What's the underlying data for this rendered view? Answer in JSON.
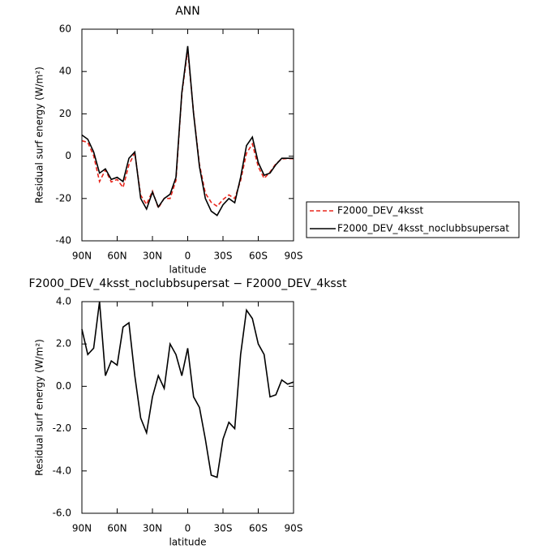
{
  "chart_data": [
    {
      "type": "line",
      "title": "ANN",
      "x_label": "latitude",
      "y_label": "Residual surf energy (W/m²)",
      "x": [
        90,
        85,
        80,
        75,
        70,
        65,
        60,
        55,
        50,
        45,
        40,
        35,
        30,
        25,
        20,
        15,
        10,
        5,
        0,
        -5,
        -10,
        -15,
        -20,
        -25,
        -30,
        -35,
        -40,
        -45,
        -50,
        -55,
        -60,
        -65,
        -70,
        -75,
        -80,
        -85,
        -90
      ],
      "xlim": [
        90,
        -90
      ],
      "xticks": [
        {
          "value": 90,
          "label": "90N"
        },
        {
          "value": 60,
          "label": "60N"
        },
        {
          "value": 30,
          "label": "30N"
        },
        0,
        {
          "value": -30,
          "label": "30S"
        },
        {
          "value": -60,
          "label": "60S"
        },
        {
          "value": -90,
          "label": "90S"
        }
      ],
      "ylim": [
        -40,
        60
      ],
      "yticks": [
        -40,
        -20,
        0,
        20,
        40,
        60
      ],
      "legend": "right",
      "series": [
        {
          "name": "F2000_DEV_4ksst",
          "color": "#e8261c",
          "dash": true,
          "values": [
            7.3,
            6.5,
            0.2,
            -12,
            -6.5,
            -12.2,
            -11,
            -14.8,
            -4,
            1.5,
            -18.5,
            -22.8,
            -16.5,
            -24.5,
            -19.9,
            -20,
            -11.5,
            29.5,
            50.2,
            20.5,
            -4,
            -17.5,
            -21.8,
            -23.7,
            -20.5,
            -18.3,
            -20,
            -11.5,
            1.4,
            5.8,
            -5,
            -10.5,
            -7.5,
            -3.6,
            -1.3,
            -1.1,
            -1.2
          ]
        },
        {
          "name": "F2000_DEV_4ksst_noclubbsupersat",
          "color": "#000000",
          "dash": false,
          "values": [
            10,
            8,
            2,
            -8,
            -6,
            -11,
            -10,
            -12,
            -1,
            2,
            -20,
            -25,
            -17,
            -24,
            -20,
            -18,
            -10,
            30,
            52,
            20,
            -5,
            -20,
            -26,
            -28,
            -23,
            -20,
            -22,
            -10,
            5,
            9,
            -3,
            -9,
            -8,
            -4,
            -1,
            -1,
            -1
          ]
        }
      ]
    },
    {
      "type": "line",
      "title": "F2000_DEV_4ksst_noclubbsupersat − F2000_DEV_4ksst",
      "x_label": "latitude",
      "y_label": "Residual surf energy (W/m²)",
      "x": [
        90,
        85,
        80,
        75,
        70,
        65,
        60,
        55,
        50,
        45,
        40,
        35,
        30,
        25,
        20,
        15,
        10,
        5,
        0,
        -5,
        -10,
        -15,
        -20,
        -25,
        -30,
        -35,
        -40,
        -45,
        -50,
        -55,
        -60,
        -65,
        -70,
        -75,
        -80,
        -85,
        -90
      ],
      "xlim": [
        90,
        -90
      ],
      "xticks": [
        {
          "value": 90,
          "label": "90N"
        },
        {
          "value": 60,
          "label": "60N"
        },
        {
          "value": 30,
          "label": "30N"
        },
        0,
        {
          "value": -30,
          "label": "30S"
        },
        {
          "value": -60,
          "label": "60S"
        },
        {
          "value": -90,
          "label": "90S"
        }
      ],
      "ylim": [
        -6,
        4
      ],
      "yticks": [
        {
          "value": -6,
          "label": "-6.0"
        },
        {
          "value": -4,
          "label": "-4.0"
        },
        {
          "value": -2,
          "label": "-2.0"
        },
        {
          "value": 0,
          "label": "0.0"
        },
        {
          "value": 2,
          "label": "2.0"
        },
        {
          "value": 4,
          "label": "4.0"
        }
      ],
      "series": [
        {
          "color": "#000000",
          "dash": false,
          "values": [
            2.7,
            1.5,
            1.8,
            4.0,
            0.5,
            1.2,
            1.0,
            2.8,
            3.0,
            0.5,
            -1.5,
            -2.2,
            -0.5,
            0.5,
            -0.1,
            2.0,
            1.5,
            0.5,
            1.8,
            -0.5,
            -1.0,
            -2.5,
            -4.2,
            -4.3,
            -2.5,
            -1.7,
            -2.0,
            1.5,
            3.6,
            3.2,
            2.0,
            1.5,
            -0.5,
            -0.4,
            0.3,
            0.1,
            0.2
          ]
        }
      ]
    }
  ]
}
